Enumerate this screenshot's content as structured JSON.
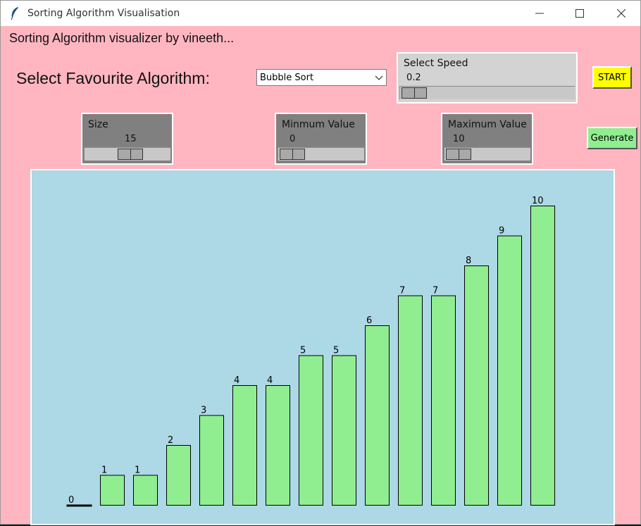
{
  "window": {
    "title": "Sorting Algorithm Visualisation"
  },
  "header": {
    "caption": "Sorting Algorithm visualizer by vineeth...",
    "algorithm_label": "Select Favourite Algorithm:",
    "algorithm_selected": "Bubble Sort"
  },
  "controls": {
    "speed": {
      "label": "Select Speed",
      "value": "0.2"
    },
    "size": {
      "label": "Size",
      "value": "15"
    },
    "min": {
      "label": "Minmum Value",
      "value": "0"
    },
    "max": {
      "label": "Maximum Value",
      "value": "10"
    },
    "start_label": "START",
    "generate_label": "Generate"
  },
  "colors": {
    "background": "#ffb6c1",
    "canvas": "#add8e6",
    "bar": "#90ee90",
    "start_button": "#ffff00",
    "generate_button": "#90ee90"
  },
  "chart_data": {
    "type": "bar",
    "values": [
      0,
      1,
      1,
      2,
      3,
      4,
      4,
      5,
      5,
      6,
      7,
      7,
      8,
      9,
      10
    ],
    "ylim": [
      0,
      10
    ]
  }
}
